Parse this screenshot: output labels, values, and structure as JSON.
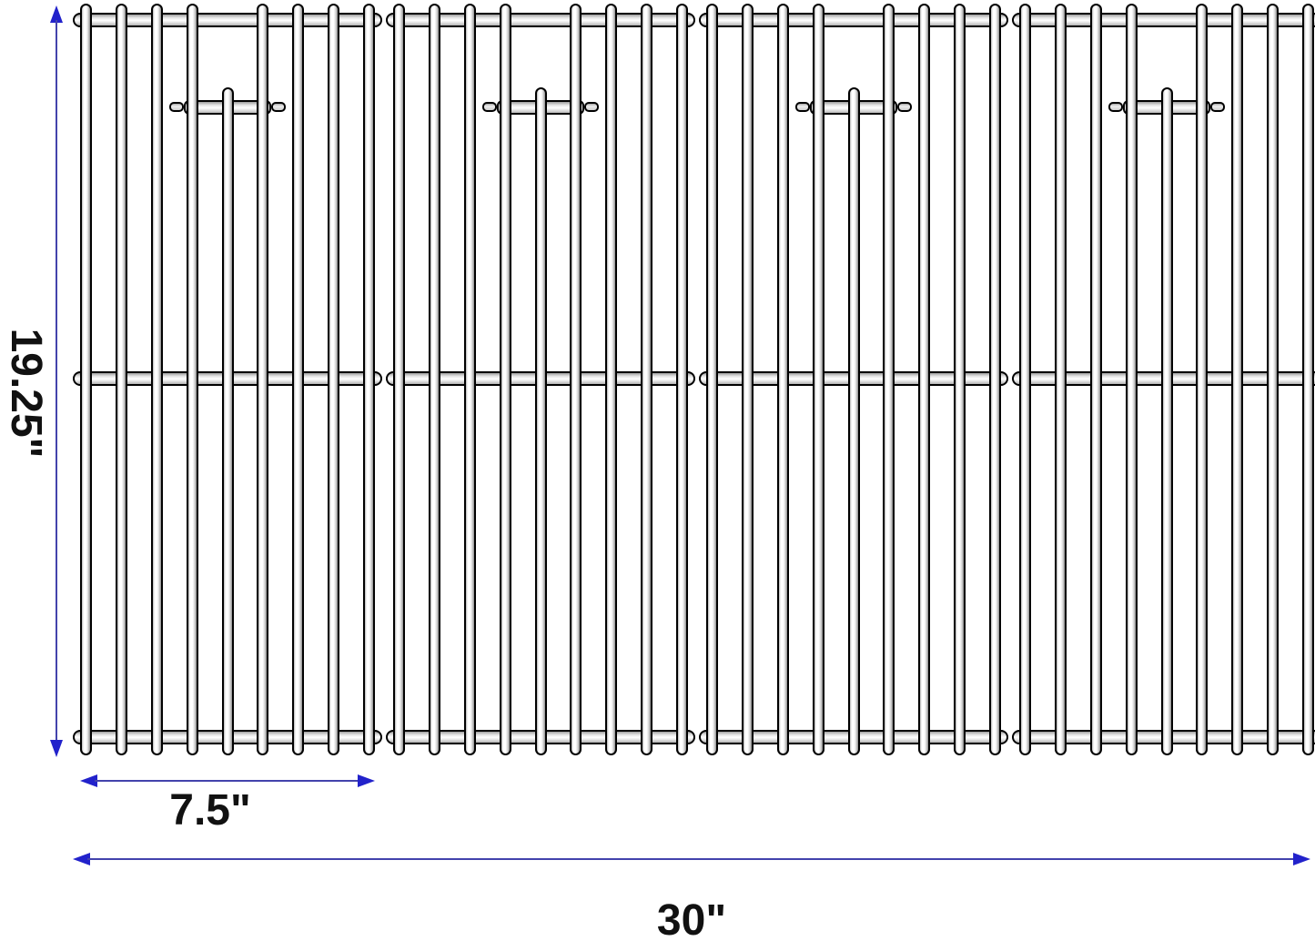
{
  "diagram": {
    "title": "grill cooking grates dimension diagram",
    "panel_count": 4,
    "rods_per_panel": 9,
    "full_rods_per_panel": 8,
    "short_center_rods_per_panel": 1,
    "crossbars_per_panel": 3,
    "labels": {
      "height": "19.25\"",
      "panel_width": "7.5\"",
      "total_width": "30\""
    },
    "colors": {
      "arrowhead": "#2222cb",
      "dimension_line": "#4343ac",
      "rod_outline": "#000000",
      "rod_fill": "#ffffff",
      "crossbar_fill": "#d9d9d9",
      "label_text": "#111111",
      "background": "#ffffff"
    }
  }
}
